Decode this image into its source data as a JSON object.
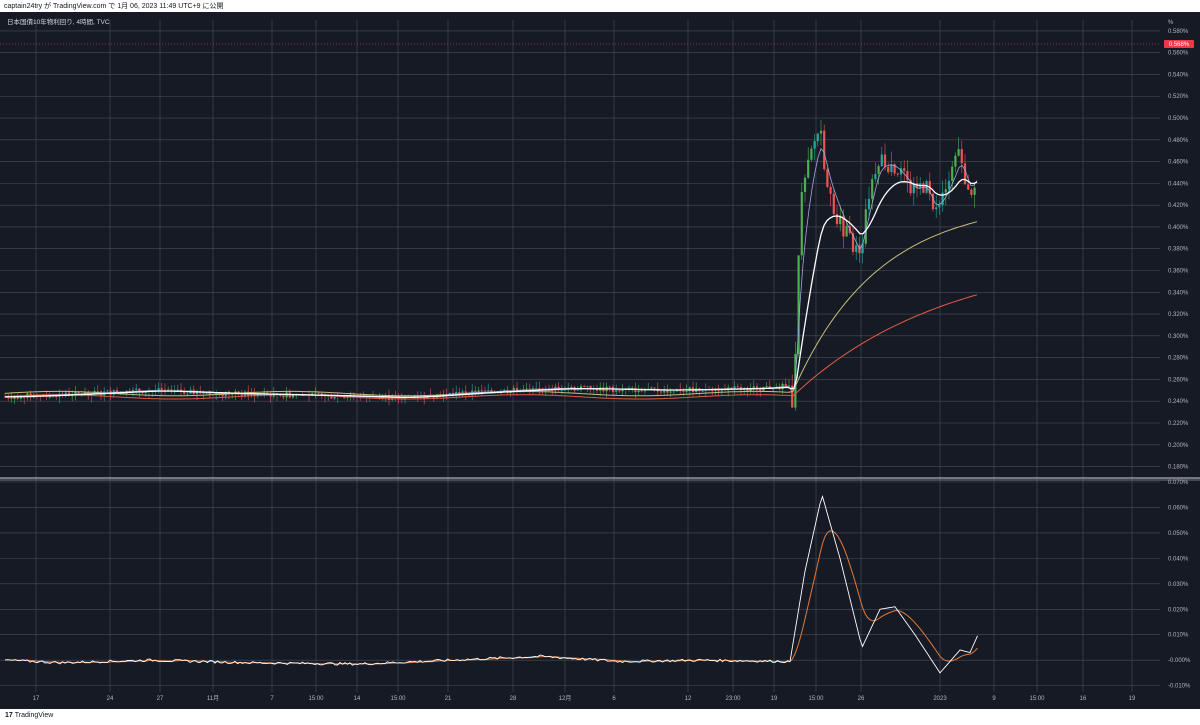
{
  "header": {
    "text": "captain24try が TradingView.com で 1月 06, 2023 11:49 UTC+9 に公開"
  },
  "footer": {
    "logo_mark": "17",
    "logo_text": "TradingView"
  },
  "colors": {
    "background": "#161a25",
    "grid": "#4a4e5a",
    "candle_up": "#26a69a",
    "candle_up_bright": "#4caf50",
    "candle_down": "#ef5350",
    "ma_fast": "#ffffff",
    "ma_fast2": "#9fa8da",
    "ma_mid": "#c6c07a",
    "ma_slow": "#e25b45",
    "osc_line": "#ffffff",
    "osc_signal": "#e07a3a",
    "price_marker": "#f23645"
  },
  "chart_data": [
    {
      "type": "candlestick",
      "title": "日本国債10年物利回り, 4時間, TVC",
      "ylabel": "%",
      "ylim": [
        0.175,
        0.59
      ],
      "y_ticks": [
        "0.580%",
        "0.560%",
        "0.540%",
        "0.520%",
        "0.500%",
        "0.480%",
        "0.460%",
        "0.440%",
        "0.420%",
        "0.400%",
        "0.380%",
        "0.360%",
        "0.340%",
        "0.320%",
        "0.300%",
        "0.280%",
        "0.260%",
        "0.240%",
        "0.220%",
        "0.200%",
        "0.180%"
      ],
      "last_price_label": "0.568%",
      "last_price": 0.568,
      "x_ticks": [
        "17",
        "24",
        "27",
        "11月",
        "7",
        "15:00",
        "14",
        "15:00",
        "21",
        "28",
        "12月",
        "6",
        "12",
        "23:00",
        "19",
        "15:00",
        "26",
        "2023",
        "9",
        "15:00",
        "16",
        "19"
      ],
      "series_approx": {
        "flat_period_range": [
          0.235,
          0.265
        ],
        "spike_low": 0.22,
        "spike_high": 0.5,
        "late_range": [
          0.4,
          0.48
        ],
        "ma_slow_end": 0.338,
        "ma_mid_end": 0.405,
        "ma_fast_end": 0.438
      }
    },
    {
      "type": "line",
      "ylim": [
        -0.0125,
        0.07
      ],
      "y_ticks": [
        "0.070%",
        "0.060%",
        "0.050%",
        "0.040%",
        "0.030%",
        "0.020%",
        "0.010%",
        "-0.000%",
        "-0.010%"
      ],
      "series": [
        {
          "values_approx": {
            "flat_level": -0.0005,
            "peak": 0.065,
            "trough": -0.006,
            "end": 0.01
          }
        },
        {
          "values_approx": {
            "flat_level": -0.0005,
            "peak": 0.051,
            "trough": -0.004,
            "end": -0.0
          }
        }
      ]
    }
  ]
}
